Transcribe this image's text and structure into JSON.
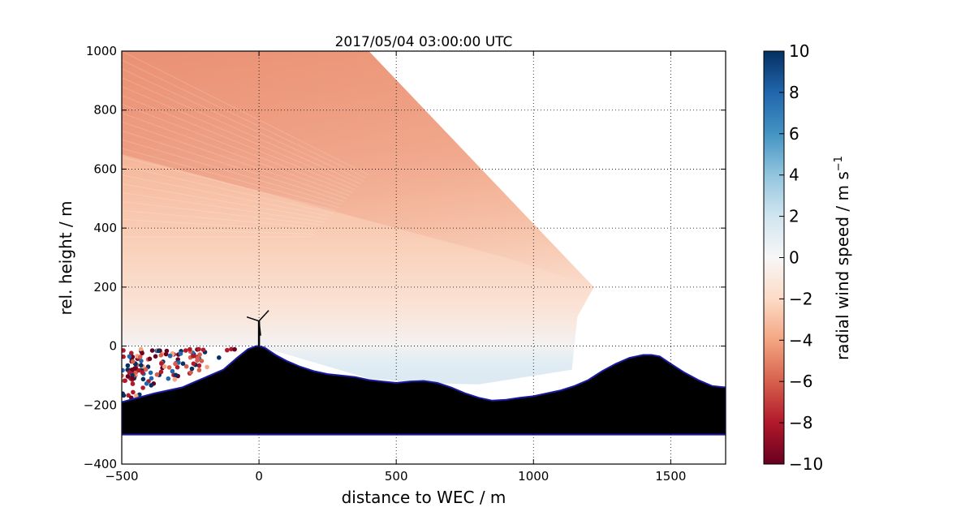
{
  "chart_data": {
    "type": "heatmap",
    "title": "2017/05/04 03:00:00 UTC",
    "xlabel": "distance to WEC / m",
    "ylabel": "rel. height / m",
    "xlim": [
      -500,
      1700
    ],
    "ylim": [
      -400,
      1000
    ],
    "x_ticks": [
      "−500",
      "0",
      "500",
      "1000",
      "1500"
    ],
    "x_tick_values": [
      -500,
      0,
      500,
      1000,
      1500
    ],
    "y_ticks": [
      "−400",
      "−200",
      "0",
      "200",
      "400",
      "600",
      "800",
      "1000"
    ],
    "y_tick_values": [
      -400,
      -200,
      0,
      200,
      400,
      600,
      800,
      1000
    ],
    "grid": true,
    "colorbar": {
      "label": "radial wind speed / m s",
      "label_superscript": "−1",
      "range": [
        -10,
        10
      ],
      "ticks": [
        "−10",
        "−8",
        "−6",
        "−4",
        "−2",
        "0",
        "2",
        "4",
        "6",
        "8",
        "10"
      ],
      "tick_values": [
        -10,
        -8,
        -6,
        -4,
        -2,
        0,
        2,
        4,
        6,
        8,
        10
      ],
      "colormap": "RdBu",
      "colors": [
        "#67001f",
        "#b2182b",
        "#d6604d",
        "#f4a582",
        "#fddbc7",
        "#f7f7f7",
        "#d1e5f0",
        "#92c5de",
        "#4393c3",
        "#2166ac",
        "#053061"
      ]
    },
    "wind_field": {
      "upper_region_speed_approx": -4,
      "near_turbine_speed_approx": 1,
      "edge_upper_region_speed_approx": -6
    },
    "terrain_profile": {
      "x": [
        -500,
        -460,
        -420,
        -380,
        -330,
        -280,
        -230,
        -180,
        -130,
        -80,
        -40,
        -10,
        0,
        20,
        60,
        100,
        150,
        200,
        250,
        300,
        350,
        400,
        450,
        500,
        550,
        600,
        650,
        700,
        750,
        800,
        850,
        900,
        950,
        1000,
        1050,
        1100,
        1150,
        1200,
        1250,
        1300,
        1350,
        1400,
        1430,
        1460,
        1500,
        1550,
        1600,
        1650,
        1700
      ],
      "y": [
        -190,
        -180,
        -170,
        -160,
        -150,
        -140,
        -120,
        -100,
        -80,
        -40,
        -10,
        0,
        0,
        -5,
        -30,
        -50,
        -70,
        -85,
        -95,
        -100,
        -105,
        -115,
        -120,
        -125,
        -120,
        -118,
        -125,
        -140,
        -160,
        -175,
        -185,
        -182,
        -175,
        -170,
        -160,
        -150,
        -135,
        -115,
        -85,
        -60,
        -40,
        -30,
        -30,
        -35,
        -60,
        -90,
        -115,
        -135,
        -140
      ],
      "base": -300,
      "fill_color": "#000000",
      "outline_color": "#1a1aa0"
    },
    "turbine": {
      "x": 0,
      "hub_height": 85
    }
  }
}
